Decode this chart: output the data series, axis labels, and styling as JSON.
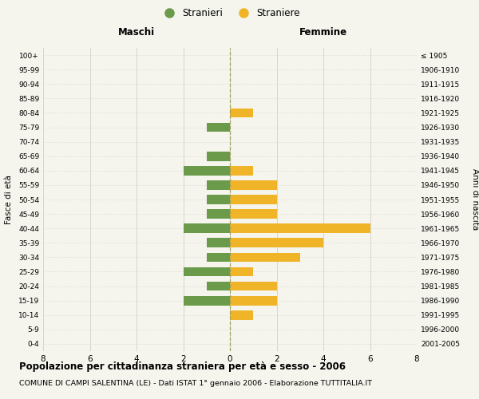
{
  "age_groups": [
    "0-4",
    "5-9",
    "10-14",
    "15-19",
    "20-24",
    "25-29",
    "30-34",
    "35-39",
    "40-44",
    "45-49",
    "50-54",
    "55-59",
    "60-64",
    "65-69",
    "70-74",
    "75-79",
    "80-84",
    "85-89",
    "90-94",
    "95-99",
    "100+"
  ],
  "birth_years": [
    "2001-2005",
    "1996-2000",
    "1991-1995",
    "1986-1990",
    "1981-1985",
    "1976-1980",
    "1971-1975",
    "1966-1970",
    "1961-1965",
    "1956-1960",
    "1951-1955",
    "1946-1950",
    "1941-1945",
    "1936-1940",
    "1931-1935",
    "1926-1930",
    "1921-1925",
    "1916-1920",
    "1911-1915",
    "1906-1910",
    "≤ 1905"
  ],
  "maschi": [
    0,
    0,
    0,
    2,
    1,
    2,
    1,
    1,
    2,
    1,
    1,
    1,
    2,
    1,
    0,
    1,
    0,
    0,
    0,
    0,
    0
  ],
  "femmine": [
    0,
    0,
    1,
    2,
    2,
    1,
    3,
    4,
    6,
    2,
    2,
    2,
    1,
    0,
    0,
    0,
    1,
    0,
    0,
    0,
    0
  ],
  "maschi_color": "#6a9a4a",
  "femmine_color": "#f0b429",
  "background_color": "#f5f5ee",
  "grid_color": "#d0d0c8",
  "dashed_line_color": "#a0a060",
  "xlim": 8,
  "title": "Popolazione per cittadinanza straniera per età e sesso - 2006",
  "subtitle": "COMUNE DI CAMPI SALENTINA (LE) - Dati ISTAT 1° gennaio 2006 - Elaborazione TUTTITALIA.IT",
  "left_label": "Maschi",
  "right_label": "Femmine",
  "legend_maschi": "Stranieri",
  "legend_femmine": "Straniere",
  "ylabel_left": "Fasce di età",
  "ylabel_right": "Anni di nascita",
  "bar_height": 0.65
}
